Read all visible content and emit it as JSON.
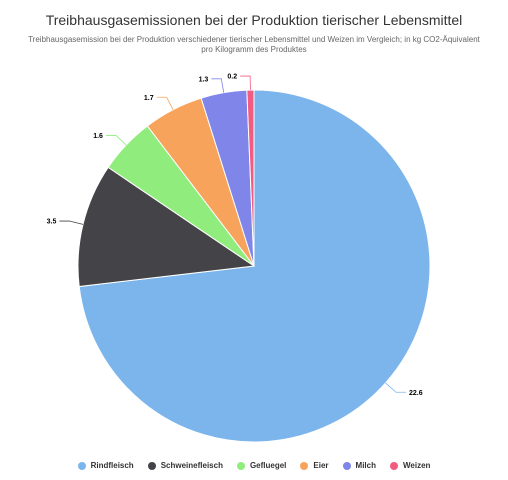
{
  "chart_data": {
    "type": "pie",
    "title": "Treibhausgasemissionen bei der Produktion tierischer Lebensmittel",
    "subtitle": "Treibhausgasemission bei der Produktion verschiedener tierischer Lebensmittel und Weizen im Vergleich; in kg CO2-Äquivalent pro Kilogramm des Produktes",
    "legend_position": "bottom",
    "slices": [
      {
        "name": "Rindfleisch",
        "value": 22.6,
        "label": "22.6",
        "color": "#7cb5ec"
      },
      {
        "name": "Schweinefleisch",
        "value": 3.5,
        "label": "3.5",
        "color": "#434348"
      },
      {
        "name": "Gefluegel",
        "value": 1.6,
        "label": "1.6",
        "color": "#90ed7d"
      },
      {
        "name": "Eier",
        "value": 1.7,
        "label": "1.7",
        "color": "#f7a35c"
      },
      {
        "name": "Milch",
        "value": 1.3,
        "label": "1.3",
        "color": "#8085e9"
      },
      {
        "name": "Weizen",
        "value": 0.2,
        "label": "0.2",
        "color": "#f15c80"
      }
    ]
  }
}
